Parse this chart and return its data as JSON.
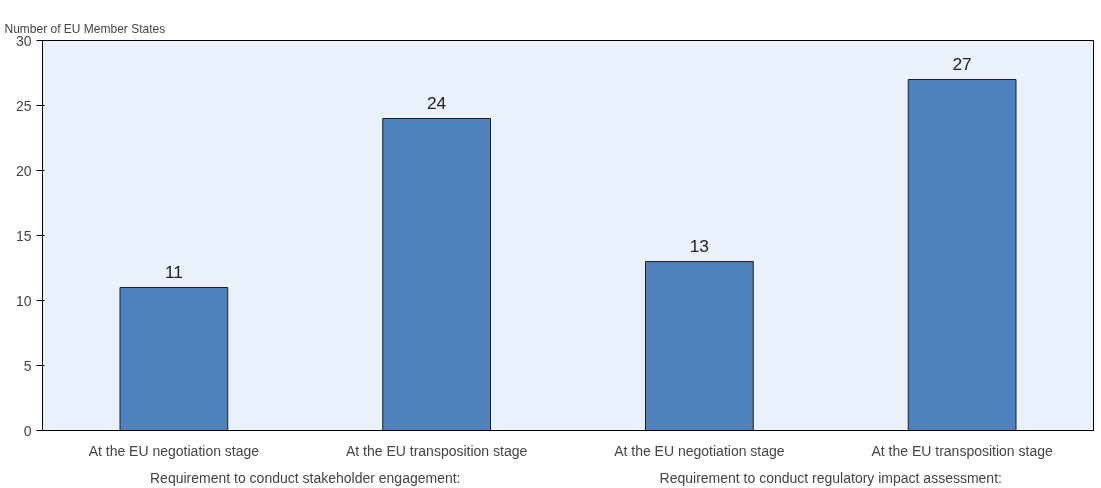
{
  "chart_data": {
    "type": "bar",
    "ylabel": "Number of EU Member States",
    "categories": [
      "At the EU negotiation stage",
      "At the EU transposition stage",
      "At the EU negotiation stage",
      "At the EU transposition stage"
    ],
    "values": [
      11,
      24,
      13,
      27
    ],
    "color": "#4f81bd",
    "ylim": [
      0,
      30
    ],
    "yticks": [
      0,
      5,
      10,
      15,
      20,
      25,
      30
    ],
    "data_labels": true,
    "grid": false,
    "annotations": [
      "Requirement to conduct stakeholder engagement:",
      "Requirement to conduct regulatory impact assessment:"
    ]
  }
}
